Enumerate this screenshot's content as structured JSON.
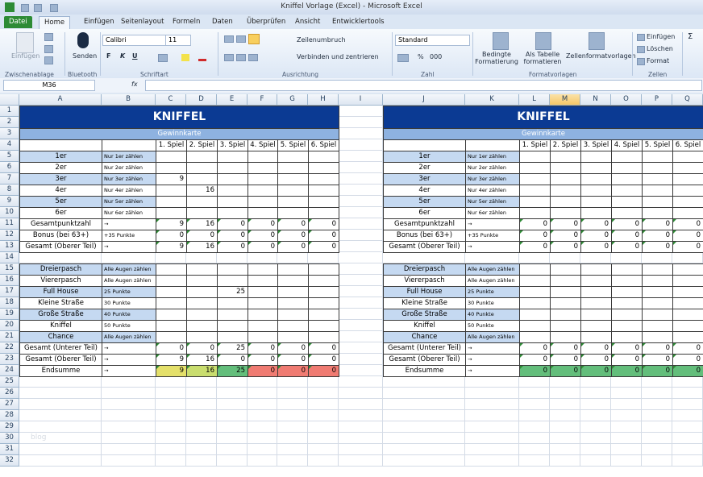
{
  "window_title": "Kniffel Vorlage (Excel) - Microsoft Excel",
  "tabs": [
    "Datei",
    "Home",
    "Einfügen",
    "Seitenlayout",
    "Formeln",
    "Daten",
    "Überprüfen",
    "Ansicht",
    "Entwicklertools"
  ],
  "active_tab": "Home",
  "ribbon": {
    "paste": "Einfügen",
    "send": "Senden",
    "font_name": "Calibri",
    "font_size": "11",
    "bold": "F",
    "italic": "K",
    "underline": "U",
    "wrap_text": "Zeilenumbruch",
    "merge_center": "Verbinden und zentrieren",
    "number_format": "Standard",
    "percent": "%",
    "thousands": "000",
    "conditional_format": "Bedingte Formatierung",
    "format_table": "Als Tabelle formatieren",
    "cell_styles": "Zellenformatvorlagen",
    "insert": "Einfügen",
    "delete": "Löschen",
    "format": "Format",
    "sum": "Σ",
    "groups": [
      "Zwischenablage",
      "Bluetooth",
      "Schriftart",
      "Ausrichtung",
      "Zahl",
      "Formatvorlagen",
      "Zellen"
    ]
  },
  "name_box": "M36",
  "fx": "fx",
  "selected_column": "M",
  "column_headers": [
    "A",
    "B",
    "C",
    "D",
    "E",
    "F",
    "G",
    "H",
    "I",
    "J",
    "K",
    "L",
    "M",
    "N",
    "O",
    "P",
    "Q"
  ],
  "row_headers": [
    1,
    2,
    3,
    4,
    5,
    6,
    7,
    8,
    9,
    10,
    11,
    12,
    13,
    14,
    15,
    16,
    17,
    18,
    19,
    20,
    21,
    22,
    23,
    24,
    25,
    26,
    27,
    28,
    29,
    30,
    31,
    32
  ],
  "watermark": "blog",
  "sheets": [
    {
      "title": "KNIFFEL",
      "subtitle": "Gewinnkarte",
      "games": [
        "1. Spiel",
        "2. Spiel",
        "3. Spiel",
        "4. Spiel",
        "5. Spiel",
        "6. Spiel"
      ],
      "upper": [
        {
          "label": "1er",
          "hint": "Nur 1er zählen",
          "values": [
            null,
            null,
            null,
            null,
            null,
            null
          ]
        },
        {
          "label": "2er",
          "hint": "Nur 2er zählen",
          "values": [
            null,
            null,
            null,
            null,
            null,
            null
          ]
        },
        {
          "label": "3er",
          "hint": "Nur 3er zählen",
          "values": [
            9,
            null,
            null,
            null,
            null,
            null
          ]
        },
        {
          "label": "4er",
          "hint": "Nur 4er zählen",
          "values": [
            null,
            16,
            null,
            null,
            null,
            null
          ]
        },
        {
          "label": "5er",
          "hint": "Nur 5er zählen",
          "values": [
            null,
            null,
            null,
            null,
            null,
            null
          ]
        },
        {
          "label": "6er",
          "hint": "Nur 6er zählen",
          "values": [
            null,
            null,
            null,
            null,
            null,
            null
          ]
        },
        {
          "label": "Gesamtpunktzahl",
          "hint": "→",
          "values": [
            9,
            16,
            0,
            0,
            0,
            0
          ]
        },
        {
          "label": "Bonus (bei 63+)",
          "hint": "+35 Punkte",
          "values": [
            0,
            0,
            0,
            0,
            0,
            0
          ]
        },
        {
          "label": "Gesamt (Oberer Teil)",
          "hint": "→",
          "values": [
            9,
            16,
            0,
            0,
            0,
            0
          ]
        }
      ],
      "lower": [
        {
          "label": "Dreierpasch",
          "hint": "Alle Augen zählen",
          "values": [
            null,
            null,
            null,
            null,
            null,
            null
          ]
        },
        {
          "label": "Viererpasch",
          "hint": "Alle Augen zählen",
          "values": [
            null,
            null,
            null,
            null,
            null,
            null
          ]
        },
        {
          "label": "Full House",
          "hint": "25 Punkte",
          "values": [
            null,
            null,
            25,
            null,
            null,
            null
          ]
        },
        {
          "label": "Kleine Straße",
          "hint": "30 Punkte",
          "values": [
            null,
            null,
            null,
            null,
            null,
            null
          ]
        },
        {
          "label": "Große Straße",
          "hint": "40 Punkte",
          "values": [
            null,
            null,
            null,
            null,
            null,
            null
          ]
        },
        {
          "label": "Kniffel",
          "hint": "50 Punkte",
          "values": [
            null,
            null,
            null,
            null,
            null,
            null
          ]
        },
        {
          "label": "Chance",
          "hint": "Alle Augen zählen",
          "values": [
            null,
            null,
            null,
            null,
            null,
            null
          ]
        },
        {
          "label": "Gesamt (Unterer Teil)",
          "hint": "→",
          "values": [
            0,
            0,
            25,
            0,
            0,
            0
          ]
        },
        {
          "label": "Gesamt (Oberer Teil)",
          "hint": "→",
          "values": [
            9,
            16,
            0,
            0,
            0,
            0
          ]
        },
        {
          "label": "Endsumme",
          "hint": "→",
          "values": [
            9,
            16,
            25,
            0,
            0,
            0
          ]
        }
      ],
      "final_colors": [
        "#e4e06a",
        "#c9dd6e",
        "#63be7b",
        "#f07b72",
        "#f07b72",
        "#f07b72"
      ]
    },
    {
      "title": "KNIFFEL",
      "subtitle": "Gewinnkarte",
      "games": [
        "1. Spiel",
        "2. Spiel",
        "3. Spiel",
        "4. Spiel",
        "5. Spiel",
        "6. Spiel"
      ],
      "upper": [
        {
          "label": "1er",
          "hint": "Nur 1er zählen",
          "values": [
            null,
            null,
            null,
            null,
            null,
            null
          ]
        },
        {
          "label": "2er",
          "hint": "Nur 2er zählen",
          "values": [
            null,
            null,
            null,
            null,
            null,
            null
          ]
        },
        {
          "label": "3er",
          "hint": "Nur 3er zählen",
          "values": [
            null,
            null,
            null,
            null,
            null,
            null
          ]
        },
        {
          "label": "4er",
          "hint": "Nur 4er zählen",
          "values": [
            null,
            null,
            null,
            null,
            null,
            null
          ]
        },
        {
          "label": "5er",
          "hint": "Nur 5er zählen",
          "values": [
            null,
            null,
            null,
            null,
            null,
            null
          ]
        },
        {
          "label": "6er",
          "hint": "Nur 6er zählen",
          "values": [
            null,
            null,
            null,
            null,
            null,
            null
          ]
        },
        {
          "label": "Gesamtpunktzahl",
          "hint": "→",
          "values": [
            0,
            0,
            0,
            0,
            0,
            0
          ]
        },
        {
          "label": "Bonus (bei 63+)",
          "hint": "+35 Punkte",
          "values": [
            0,
            0,
            0,
            0,
            0,
            0
          ]
        },
        {
          "label": "Gesamt (Oberer Teil)",
          "hint": "→",
          "values": [
            0,
            0,
            0,
            0,
            0,
            0
          ]
        }
      ],
      "lower": [
        {
          "label": "Dreierpasch",
          "hint": "Alle Augen zählen",
          "values": [
            null,
            null,
            null,
            null,
            null,
            null
          ]
        },
        {
          "label": "Viererpasch",
          "hint": "Alle Augen zählen",
          "values": [
            null,
            null,
            null,
            null,
            null,
            null
          ]
        },
        {
          "label": "Full House",
          "hint": "25 Punkte",
          "values": [
            null,
            null,
            null,
            null,
            null,
            null
          ]
        },
        {
          "label": "Kleine Straße",
          "hint": "30 Punkte",
          "values": [
            null,
            null,
            null,
            null,
            null,
            null
          ]
        },
        {
          "label": "Große Straße",
          "hint": "40 Punkte",
          "values": [
            null,
            null,
            null,
            null,
            null,
            null
          ]
        },
        {
          "label": "Kniffel",
          "hint": "50 Punkte",
          "values": [
            null,
            null,
            null,
            null,
            null,
            null
          ]
        },
        {
          "label": "Chance",
          "hint": "Alle Augen zählen",
          "values": [
            null,
            null,
            null,
            null,
            null,
            null
          ]
        },
        {
          "label": "Gesamt (Unterer Teil)",
          "hint": "→",
          "values": [
            0,
            0,
            0,
            0,
            0,
            0
          ]
        },
        {
          "label": "Gesamt (Oberer Teil)",
          "hint": "→",
          "values": [
            0,
            0,
            0,
            0,
            0,
            0
          ]
        },
        {
          "label": "Endsumme",
          "hint": "→",
          "values": [
            0,
            0,
            0,
            0,
            0,
            0
          ]
        }
      ],
      "final_colors": [
        "#63be7b",
        "#63be7b",
        "#63be7b",
        "#63be7b",
        "#63be7b",
        "#63be7b"
      ]
    }
  ]
}
